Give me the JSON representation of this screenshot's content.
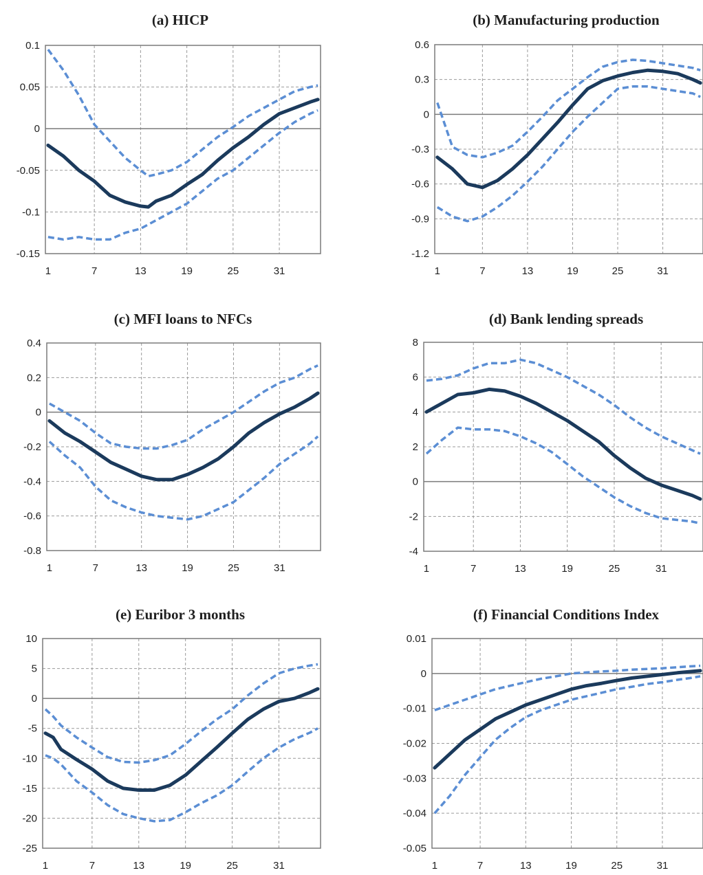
{
  "chart_data": [
    {
      "type": "line",
      "title": "(a) HICP",
      "x_ticks": [
        1,
        7,
        13,
        19,
        25,
        31
      ],
      "xlim": [
        1,
        36
      ],
      "y_ticks": [
        "0.1",
        "0.05",
        "0",
        "-0.05",
        "-0.1",
        "-0.15"
      ],
      "ylim": [
        -0.15,
        0.1
      ],
      "grid": true,
      "x": [
        1,
        3,
        5,
        7,
        9,
        11,
        13,
        14,
        15,
        17,
        19,
        21,
        23,
        25,
        27,
        29,
        31,
        33,
        35,
        36
      ],
      "series": [
        {
          "role": "median",
          "values": [
            -0.02,
            -0.033,
            -0.05,
            -0.063,
            -0.08,
            -0.088,
            -0.093,
            -0.094,
            -0.087,
            -0.08,
            -0.067,
            -0.055,
            -0.038,
            -0.023,
            -0.01,
            0.005,
            0.018,
            0.025,
            0.032,
            0.035
          ]
        },
        {
          "role": "upper",
          "values": [
            0.095,
            0.07,
            0.04,
            0.005,
            -0.015,
            -0.035,
            -0.05,
            -0.057,
            -0.055,
            -0.05,
            -0.04,
            -0.025,
            -0.01,
            0.002,
            0.015,
            0.025,
            0.035,
            0.045,
            0.05,
            0.052
          ]
        },
        {
          "role": "lower",
          "values": [
            -0.13,
            -0.133,
            -0.13,
            -0.133,
            -0.133,
            -0.125,
            -0.12,
            -0.115,
            -0.11,
            -0.1,
            -0.09,
            -0.075,
            -0.06,
            -0.05,
            -0.035,
            -0.02,
            -0.005,
            0.008,
            0.018,
            0.022
          ]
        }
      ]
    },
    {
      "type": "line",
      "title": "(b) Manufacturing production",
      "x_ticks": [
        1,
        7,
        13,
        19,
        25,
        31
      ],
      "xlim": [
        1,
        36
      ],
      "y_ticks": [
        "0.6",
        "0.3",
        "0",
        "-0.3",
        "-0.6",
        "-0.9",
        "-1.2"
      ],
      "ylim": [
        -1.2,
        0.6
      ],
      "grid": true,
      "x": [
        1,
        3,
        5,
        7,
        9,
        11,
        13,
        15,
        17,
        19,
        21,
        23,
        25,
        27,
        29,
        31,
        33,
        35,
        36
      ],
      "series": [
        {
          "role": "median",
          "values": [
            -0.37,
            -0.47,
            -0.6,
            -0.63,
            -0.57,
            -0.47,
            -0.35,
            -0.21,
            -0.07,
            0.08,
            0.22,
            0.29,
            0.33,
            0.36,
            0.38,
            0.37,
            0.35,
            0.3,
            0.27
          ]
        },
        {
          "role": "upper",
          "values": [
            0.1,
            -0.28,
            -0.35,
            -0.37,
            -0.33,
            -0.27,
            -0.15,
            -0.02,
            0.12,
            0.22,
            0.32,
            0.41,
            0.45,
            0.47,
            0.46,
            0.44,
            0.42,
            0.4,
            0.38
          ]
        },
        {
          "role": "lower",
          "values": [
            -0.8,
            -0.88,
            -0.92,
            -0.88,
            -0.8,
            -0.7,
            -0.58,
            -0.45,
            -0.3,
            -0.15,
            -0.02,
            0.1,
            0.22,
            0.24,
            0.24,
            0.22,
            0.2,
            0.18,
            0.15
          ]
        }
      ]
    },
    {
      "type": "line",
      "title": "(c) MFI loans to NFCs",
      "x_ticks": [
        1,
        7,
        13,
        19,
        25,
        31
      ],
      "xlim": [
        1,
        36
      ],
      "y_ticks": [
        "0.4",
        "0.2",
        "0",
        "-0.2",
        "-0.4",
        "-0.6",
        "-0.8"
      ],
      "ylim": [
        -0.8,
        0.4
      ],
      "grid": true,
      "x": [
        1,
        3,
        5,
        7,
        9,
        11,
        13,
        15,
        17,
        19,
        21,
        23,
        25,
        27,
        29,
        31,
        33,
        35,
        36
      ],
      "series": [
        {
          "role": "median",
          "values": [
            -0.05,
            -0.12,
            -0.17,
            -0.23,
            -0.29,
            -0.33,
            -0.37,
            -0.39,
            -0.39,
            -0.36,
            -0.32,
            -0.27,
            -0.2,
            -0.12,
            -0.06,
            -0.01,
            0.03,
            0.08,
            0.11
          ]
        },
        {
          "role": "upper",
          "values": [
            0.05,
            0.0,
            -0.05,
            -0.12,
            -0.18,
            -0.2,
            -0.21,
            -0.21,
            -0.19,
            -0.16,
            -0.1,
            -0.05,
            0.0,
            0.06,
            0.12,
            0.17,
            0.2,
            0.25,
            0.27
          ]
        },
        {
          "role": "lower",
          "values": [
            -0.17,
            -0.25,
            -0.32,
            -0.43,
            -0.51,
            -0.55,
            -0.58,
            -0.6,
            -0.61,
            -0.62,
            -0.6,
            -0.56,
            -0.52,
            -0.45,
            -0.38,
            -0.3,
            -0.24,
            -0.18,
            -0.14
          ]
        }
      ]
    },
    {
      "type": "line",
      "title": "(d) Bank lending spreads",
      "x_ticks": [
        1,
        7,
        13,
        19,
        25,
        31
      ],
      "xlim": [
        1,
        36
      ],
      "y_ticks": [
        "8",
        "6",
        "4",
        "2",
        "0",
        "-2",
        "-4"
      ],
      "ylim": [
        -4,
        8
      ],
      "grid": true,
      "x": [
        1,
        3,
        5,
        7,
        9,
        11,
        13,
        15,
        17,
        19,
        21,
        23,
        25,
        27,
        29,
        31,
        33,
        35,
        36
      ],
      "series": [
        {
          "role": "median",
          "values": [
            4.0,
            4.5,
            5.0,
            5.1,
            5.3,
            5.2,
            4.9,
            4.5,
            4.0,
            3.5,
            2.9,
            2.3,
            1.5,
            0.8,
            0.2,
            -0.2,
            -0.5,
            -0.8,
            -1.0
          ]
        },
        {
          "role": "upper",
          "values": [
            5.8,
            5.9,
            6.1,
            6.5,
            6.8,
            6.8,
            7.0,
            6.8,
            6.4,
            6.0,
            5.5,
            5.0,
            4.4,
            3.7,
            3.1,
            2.6,
            2.2,
            1.8,
            1.6
          ]
        },
        {
          "role": "lower",
          "values": [
            1.6,
            2.4,
            3.1,
            3.0,
            3.0,
            2.9,
            2.6,
            2.2,
            1.7,
            1.0,
            0.3,
            -0.3,
            -0.9,
            -1.4,
            -1.8,
            -2.1,
            -2.2,
            -2.3,
            -2.4
          ]
        }
      ]
    },
    {
      "type": "line",
      "title": "(e) Euribor 3 months",
      "x_ticks": [
        1,
        7,
        13,
        19,
        25,
        31
      ],
      "xlim": [
        1,
        36
      ],
      "y_ticks": [
        "10",
        "5",
        "0",
        "-5",
        "-10",
        "-15",
        "-20",
        "-25"
      ],
      "ylim": [
        -25,
        10
      ],
      "grid": true,
      "x": [
        1,
        2,
        3,
        5,
        7,
        9,
        11,
        13,
        15,
        17,
        19,
        21,
        23,
        25,
        27,
        29,
        31,
        33,
        35,
        36
      ],
      "series": [
        {
          "role": "median",
          "values": [
            -5.8,
            -6.5,
            -8.5,
            -10.2,
            -11.8,
            -13.8,
            -15.0,
            -15.3,
            -15.3,
            -14.5,
            -12.8,
            -10.5,
            -8.2,
            -5.8,
            -3.5,
            -1.8,
            -0.5,
            0.0,
            1.0,
            1.6
          ]
        },
        {
          "role": "upper",
          "values": [
            -1.8,
            -3.0,
            -4.5,
            -6.5,
            -8.2,
            -9.8,
            -10.6,
            -10.7,
            -10.3,
            -9.5,
            -7.6,
            -5.5,
            -3.5,
            -1.8,
            0.5,
            2.5,
            4.2,
            5.0,
            5.5,
            5.7
          ]
        },
        {
          "role": "lower",
          "values": [
            -9.5,
            -10.0,
            -11.0,
            -13.8,
            -15.7,
            -17.8,
            -19.3,
            -20.0,
            -20.5,
            -20.3,
            -19.0,
            -17.5,
            -16.2,
            -14.5,
            -12.2,
            -10.0,
            -8.2,
            -6.8,
            -5.7,
            -5.0
          ]
        }
      ]
    },
    {
      "type": "line",
      "title": "(f) Financial Conditions Index",
      "x_ticks": [
        1,
        7,
        13,
        19,
        25,
        31
      ],
      "xlim": [
        1,
        36
      ],
      "y_ticks": [
        "0.01",
        "0",
        "-0.01",
        "-0.02",
        "-0.03",
        "-0.04",
        "-0.05"
      ],
      "ylim": [
        -0.05,
        0.01
      ],
      "grid": true,
      "x": [
        1,
        3,
        5,
        7,
        9,
        11,
        13,
        15,
        17,
        19,
        21,
        23,
        25,
        27,
        29,
        31,
        33,
        35,
        36
      ],
      "series": [
        {
          "role": "median",
          "values": [
            -0.027,
            -0.023,
            -0.019,
            -0.016,
            -0.013,
            -0.011,
            -0.009,
            -0.0075,
            -0.006,
            -0.0045,
            -0.0035,
            -0.0028,
            -0.002,
            -0.0013,
            -0.0008,
            -0.0003,
            0.0002,
            0.0006,
            0.0008
          ]
        },
        {
          "role": "upper",
          "values": [
            -0.0105,
            -0.009,
            -0.0075,
            -0.006,
            -0.0045,
            -0.0035,
            -0.0025,
            -0.0015,
            -0.0008,
            0.0,
            0.0003,
            0.0006,
            0.0008,
            0.0011,
            0.0013,
            0.0015,
            0.0018,
            0.0021,
            0.0022
          ]
        },
        {
          "role": "lower",
          "values": [
            -0.04,
            -0.035,
            -0.029,
            -0.024,
            -0.019,
            -0.0155,
            -0.0125,
            -0.0105,
            -0.009,
            -0.0075,
            -0.0065,
            -0.0055,
            -0.0045,
            -0.0038,
            -0.003,
            -0.0025,
            -0.0018,
            -0.0012,
            -0.0008
          ]
        }
      ]
    }
  ],
  "colors": {
    "median": "#1b3a5c",
    "band": "#5b8ed4",
    "grid": "#9a9a9a",
    "axis": "#7a7a7a",
    "zero_line": "#7a7a7a"
  }
}
